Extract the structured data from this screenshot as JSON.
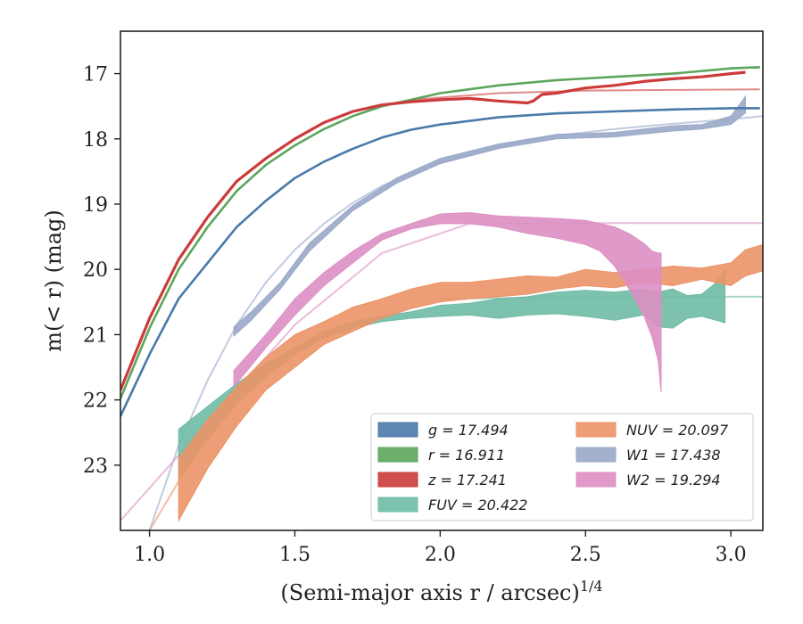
{
  "chart_data": {
    "type": "line",
    "xlabel": "(Semi-major axis r / arcsec)",
    "xlabel_exponent": "1/4",
    "ylabel": "m(< r) (mag)",
    "xlim": [
      0.9,
      3.11
    ],
    "ylim": [
      24.0,
      16.35
    ],
    "y_inverted": true,
    "x_ticks": [
      "1.0",
      "1.5",
      "2.0",
      "2.5",
      "3.0"
    ],
    "y_ticks": [
      "17",
      "18",
      "19",
      "20",
      "21",
      "22",
      "23"
    ],
    "grid": false,
    "legend_position": "lower-right",
    "legend_columns": 2,
    "series": [
      {
        "name": "g = 17.494",
        "band": "g",
        "color": "#4a7aaa",
        "kind": "line",
        "x": [
          0.9,
          1.0,
          1.1,
          1.2,
          1.3,
          1.4,
          1.5,
          1.6,
          1.7,
          1.8,
          1.9,
          2.0,
          2.2,
          2.4,
          2.6,
          2.8,
          3.0,
          3.1
        ],
        "y": [
          22.25,
          21.3,
          20.45,
          19.9,
          19.35,
          18.95,
          18.6,
          18.35,
          18.15,
          17.98,
          17.86,
          17.78,
          17.67,
          17.61,
          17.58,
          17.55,
          17.53,
          17.53
        ],
        "fit_x": [
          2.6,
          2.8,
          3.0,
          3.1
        ],
        "fit_y": [
          17.58,
          17.55,
          17.53,
          17.53
        ]
      },
      {
        "name": "r = 16.911",
        "band": "r",
        "color": "#5da55d",
        "kind": "line",
        "x": [
          0.9,
          1.0,
          1.1,
          1.2,
          1.3,
          1.4,
          1.5,
          1.6,
          1.7,
          1.8,
          1.9,
          2.0,
          2.2,
          2.4,
          2.6,
          2.8,
          3.0,
          3.1
        ],
        "y": [
          21.98,
          20.9,
          20.0,
          19.35,
          18.8,
          18.4,
          18.1,
          17.85,
          17.65,
          17.5,
          17.4,
          17.3,
          17.18,
          17.1,
          17.05,
          17.0,
          16.92,
          16.9
        ],
        "fit_x": [
          3.0,
          3.1
        ],
        "fit_y": [
          16.91,
          16.91
        ]
      },
      {
        "name": "z = 17.241",
        "band": "z",
        "color": "#cc3b3b",
        "kind": "line",
        "x": [
          0.9,
          1.0,
          1.1,
          1.2,
          1.3,
          1.4,
          1.5,
          1.6,
          1.7,
          1.8,
          1.9,
          2.0,
          2.1,
          2.2,
          2.3,
          2.32,
          2.35,
          2.4,
          2.5,
          2.6,
          2.7,
          2.8,
          2.9,
          3.0,
          3.05
        ],
        "y": [
          21.85,
          20.75,
          19.85,
          19.2,
          18.65,
          18.3,
          18.0,
          17.75,
          17.58,
          17.48,
          17.43,
          17.4,
          17.38,
          17.42,
          17.45,
          17.42,
          17.32,
          17.3,
          17.22,
          17.18,
          17.12,
          17.08,
          17.05,
          17.0,
          16.98
        ],
        "fit_x": [
          1.9,
          2.2,
          2.5,
          2.8,
          3.1
        ],
        "fit_y": [
          17.4,
          17.3,
          17.26,
          17.25,
          17.24
        ]
      },
      {
        "name": "FUV = 20.422",
        "band": "FUV",
        "color": "#6fbba5",
        "kind": "band",
        "x": [
          1.1,
          1.2,
          1.3,
          1.4,
          1.5,
          1.6,
          1.7,
          1.8,
          1.9,
          2.0,
          2.1,
          2.2,
          2.3,
          2.4,
          2.5,
          2.6,
          2.7,
          2.75,
          2.8,
          2.85,
          2.9,
          2.95,
          2.98
        ],
        "y_upper": [
          22.45,
          22.1,
          21.75,
          21.45,
          21.2,
          20.95,
          20.8,
          20.72,
          20.65,
          20.55,
          20.52,
          20.45,
          20.42,
          20.35,
          20.32,
          20.35,
          20.3,
          20.35,
          20.3,
          20.4,
          20.38,
          20.2,
          20.0
        ],
        "y_lower": [
          23.2,
          22.6,
          22.05,
          21.65,
          21.3,
          21.05,
          20.9,
          20.8,
          20.75,
          20.72,
          20.7,
          20.75,
          20.7,
          20.68,
          20.72,
          20.78,
          20.7,
          20.88,
          20.9,
          20.75,
          20.72,
          20.78,
          20.82
        ],
        "fit_x": [
          2.0,
          2.4,
          2.8,
          3.11
        ],
        "fit_y": [
          20.45,
          20.43,
          20.42,
          20.42
        ]
      },
      {
        "name": "NUV = 20.097",
        "band": "NUV",
        "color": "#eb9367",
        "kind": "band",
        "x": [
          1.1,
          1.2,
          1.3,
          1.4,
          1.5,
          1.6,
          1.7,
          1.8,
          1.9,
          2.0,
          2.1,
          2.2,
          2.3,
          2.4,
          2.5,
          2.6,
          2.7,
          2.8,
          2.9,
          3.0,
          3.05,
          3.11
        ],
        "y_upper": [
          22.9,
          22.3,
          21.8,
          21.35,
          21.0,
          20.8,
          20.58,
          20.45,
          20.3,
          20.2,
          20.2,
          20.15,
          20.1,
          20.12,
          20.0,
          20.05,
          20.0,
          19.95,
          19.98,
          19.9,
          19.7,
          19.62
        ],
        "y_lower": [
          23.85,
          23.05,
          22.4,
          21.85,
          21.5,
          21.15,
          20.95,
          20.75,
          20.6,
          20.5,
          20.45,
          20.42,
          20.38,
          20.3,
          20.25,
          20.28,
          20.2,
          20.25,
          20.15,
          20.25,
          20.1,
          20.02
        ],
        "fit_x": [
          0.9,
          1.0,
          1.1,
          1.2,
          1.3,
          1.4,
          1.5
        ],
        "fit_y": [
          24.9,
          24.0,
          23.25,
          22.6,
          22.05,
          21.6,
          21.25
        ]
      },
      {
        "name": "W1 = 17.438",
        "band": "W1",
        "color": "#99a8c8",
        "kind": "band",
        "x": [
          1.29,
          1.35,
          1.45,
          1.55,
          1.7,
          1.85,
          2.0,
          2.2,
          2.4,
          2.6,
          2.8,
          2.9,
          3.0,
          3.05
        ],
        "y_upper": [
          20.88,
          20.65,
          20.2,
          19.6,
          19.02,
          18.6,
          18.3,
          18.08,
          17.93,
          17.9,
          17.8,
          17.78,
          17.65,
          17.35
        ],
        "y_lower": [
          21.02,
          20.78,
          20.3,
          19.72,
          19.1,
          18.68,
          18.38,
          18.15,
          18.0,
          17.97,
          17.88,
          17.85,
          17.78,
          17.6
        ],
        "fit_x": [
          0.9,
          1.0,
          1.1,
          1.2,
          1.3,
          1.4,
          1.5,
          1.6,
          1.7,
          1.8,
          2.0,
          2.2,
          2.4,
          2.6,
          2.8,
          3.0,
          3.11
        ],
        "fit_y": [
          25.5,
          24.0,
          22.7,
          21.7,
          20.85,
          20.2,
          19.7,
          19.3,
          18.98,
          18.72,
          18.35,
          18.12,
          17.95,
          17.85,
          17.77,
          17.7,
          17.65
        ]
      },
      {
        "name": "W2 = 19.294",
        "band": "W2",
        "color": "#dd8fc3",
        "kind": "band",
        "x": [
          1.29,
          1.4,
          1.5,
          1.6,
          1.7,
          1.8,
          1.9,
          2.0,
          2.1,
          2.2,
          2.3,
          2.4,
          2.5,
          2.55,
          2.6,
          2.65,
          2.7,
          2.73,
          2.75,
          2.76
        ],
        "y_upper": [
          21.55,
          21.0,
          20.45,
          20.05,
          19.72,
          19.45,
          19.3,
          19.15,
          19.13,
          19.18,
          19.2,
          19.22,
          19.25,
          19.3,
          19.35,
          19.45,
          19.6,
          19.72,
          19.75,
          19.75
        ],
        "y_lower": [
          21.8,
          21.2,
          20.7,
          20.25,
          19.9,
          19.55,
          19.38,
          19.3,
          19.3,
          19.35,
          19.45,
          19.52,
          19.62,
          19.72,
          19.95,
          20.3,
          20.7,
          21.05,
          21.4,
          21.88
        ],
        "fit_x": [
          0.9,
          1.0,
          1.1,
          1.2,
          1.3,
          1.5,
          1.8,
          2.1,
          2.6,
          3.11
        ],
        "fit_y": [
          23.85,
          23.35,
          22.85,
          22.35,
          21.85,
          20.85,
          19.75,
          19.3,
          19.29,
          19.29
        ]
      }
    ]
  }
}
